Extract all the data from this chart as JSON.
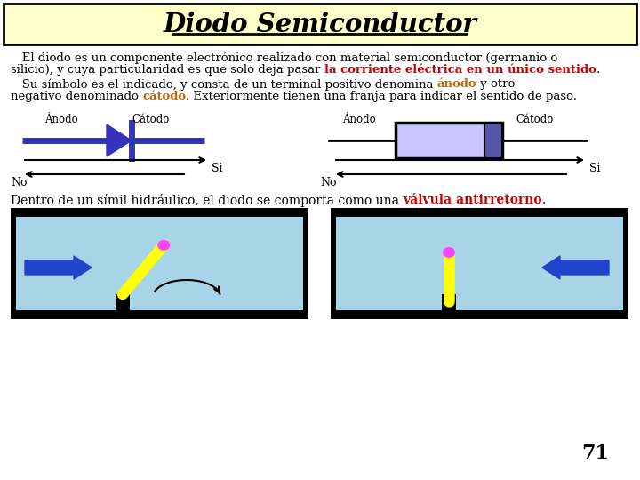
{
  "title": "Diodo Semiconductor",
  "title_bg": "#ffffcc",
  "text1_line1": "   El diodo es un componente electrónico realizado con material semiconductor (germanio o",
  "text1_line2_a": "silicio), y cuya particularidad es que solo deja pasar ",
  "text1_line2_b": "la corriente eléctrica en un único sentido",
  "text1_line2_c": ".",
  "text2_line1_a": "   Su símbolo es el indicado, y consta de un terminal positivo denomina ",
  "text2_line1_b": "ánodo",
  "text2_line1_c": " y otro",
  "text2_line2_a": "negativo denominado ",
  "text2_line2_b": "cátodo",
  "text2_line2_c": ". Exteriormente tienen una franja para indicar el sentido de paso.",
  "text3_a": "Dentro de un símil hidráulico, el diodo se comporta como una ",
  "text3_b": "válvula antirretorno",
  "text3_c": ".",
  "diode_color": "#3333bb",
  "resistor_fill": "#c8c8ff",
  "water_color": "#a8d4e8",
  "arrow_blue": "#2244cc",
  "valve_yellow": "#ffff00",
  "valve_knob": "#ff44ff",
  "page_number": "71"
}
